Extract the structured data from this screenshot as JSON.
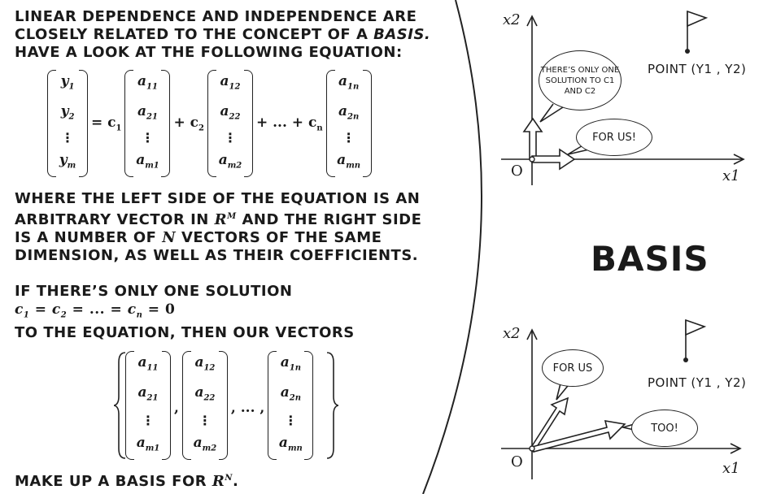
{
  "intro": {
    "line1": "LINEAR DEPENDENCE AND INDEPENDENCE ARE",
    "line2a": "CLOSELY RELATED TO THE CONCEPT OF A ",
    "line2b": "BASIS.",
    "line3": "HAVE A LOOK AT THE FOLLOWING EQUATION:"
  },
  "equation": {
    "y": [
      "y",
      "1",
      "y",
      "2",
      "y",
      "m"
    ],
    "col1": [
      "a",
      "11",
      "a",
      "21",
      "a",
      "m1"
    ],
    "col2": [
      "a",
      "12",
      "a",
      "22",
      "a",
      "m2"
    ],
    "coln": [
      "a",
      "1n",
      "a",
      "2n",
      "a",
      "mn"
    ],
    "eq_c1": "= c",
    "c1_sub": "1",
    "plus_c2": "+ c",
    "c2_sub": "2",
    "plus_dots_cn": "+ ... + c",
    "cn_sub": "n",
    "vdots": "⋮"
  },
  "where": {
    "line1": "WHERE THE LEFT SIDE OF THE EQUATION IS AN",
    "line2a": "ARBITRARY VECTOR IN ",
    "line2_R": "R",
    "line2_sup": "m",
    "line2b": " AND THE RIGHT SIDE",
    "line3a": "IS A NUMBER OF ",
    "line3_n": "n",
    "line3b": " VECTORS OF THE SAME",
    "line4": "DIMENSION, AS WELL AS THEIR COEFFICIENTS."
  },
  "ifline": {
    "line1": "IF THERE’S ONLY ONE SOLUTION",
    "formula_c": "c",
    "s1": "1",
    "s2": "2",
    "sn": "n",
    "eq_mid": " = ",
    "dots": "...",
    "zero": "0",
    "line3": "TO THE EQUATION, THEN OUR VECTORS"
  },
  "set": {
    "comma": ",",
    "comma_dots": ", ... ,"
  },
  "final": {
    "text_a": "MAKE UP A BASIS FOR ",
    "R": "R",
    "sup": "n",
    "text_b": "."
  },
  "basis_title": "BASIS",
  "top_panel": {
    "bubble1": "THERE’S ONLY ONE SOLUTION TO c1 AND c2",
    "bubble2": "FOR US!",
    "point": "POINT (y1 , y2)",
    "x2": "x2",
    "x1": "x1",
    "origin": "O"
  },
  "bottom_panel": {
    "bubble1": "FOR US",
    "bubble2": "TOO!",
    "point": "POINT (y1 , y2)",
    "x2": "x2",
    "x1": "x1",
    "origin": "O"
  }
}
